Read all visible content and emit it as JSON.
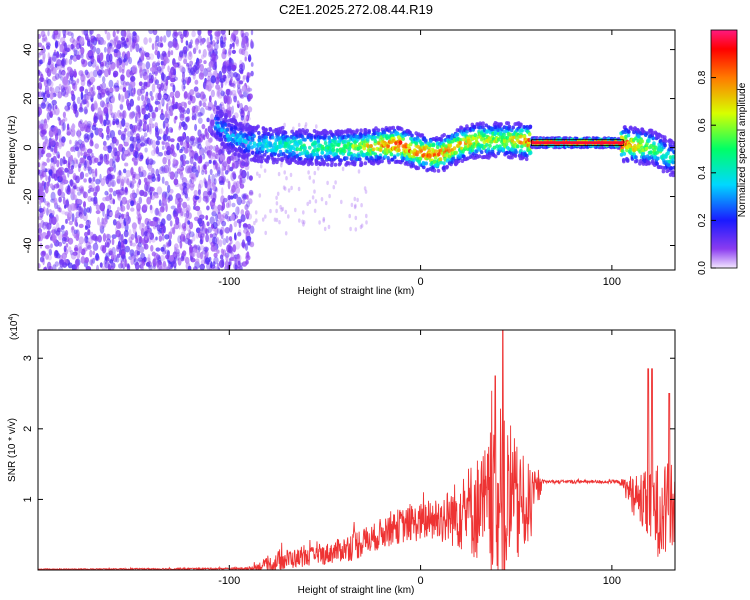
{
  "title": "C2E1.2025.272.08.44.R19",
  "chart_data": [
    {
      "type": "heatmap",
      "xlabel": "Height of straight line (km)",
      "ylabel": "Frequency (Hz)",
      "xlim": [
        -200,
        133
      ],
      "ylim": [
        -50,
        48
      ],
      "xticks": [
        -100,
        0,
        100
      ],
      "xtick_labels": [
        "-100",
        "0",
        "100"
      ],
      "yticks": [
        -40,
        -20,
        0,
        20,
        40
      ],
      "ytick_labels": [
        "-40",
        "-20",
        "0",
        "20",
        "40"
      ],
      "grid": false,
      "colorbar": {
        "label": "Normalized spectral amplitude",
        "range": [
          0,
          1
        ],
        "ticks": [
          0,
          0.2,
          0.4,
          0.6,
          0.8
        ],
        "tick_labels": [
          "0.0",
          "0.2",
          "0.4",
          "0.6",
          "0.8"
        ]
      },
      "ridge": [
        {
          "x": -107,
          "f": 10,
          "amp": 0.3
        },
        {
          "x": -100,
          "f": 5,
          "amp": 0.35
        },
        {
          "x": -90,
          "f": 2,
          "amp": 0.35
        },
        {
          "x": -80,
          "f": 1,
          "amp": 0.4
        },
        {
          "x": -70,
          "f": 1,
          "amp": 0.45
        },
        {
          "x": -60,
          "f": 0,
          "amp": 0.5
        },
        {
          "x": -50,
          "f": 0,
          "amp": 0.5
        },
        {
          "x": -40,
          "f": 0,
          "amp": 0.55
        },
        {
          "x": -30,
          "f": 0,
          "amp": 0.65
        },
        {
          "x": -20,
          "f": 1,
          "amp": 0.8
        },
        {
          "x": -10,
          "f": 1,
          "amp": 0.9
        },
        {
          "x": 0,
          "f": -2,
          "amp": 0.85
        },
        {
          "x": 10,
          "f": -3,
          "amp": 0.8
        },
        {
          "x": 20,
          "f": 1,
          "amp": 0.75
        },
        {
          "x": 30,
          "f": 3,
          "amp": 0.7
        },
        {
          "x": 40,
          "f": 3,
          "amp": 0.65
        },
        {
          "x": 50,
          "f": 3,
          "amp": 0.7
        },
        {
          "x": 60,
          "f": 2,
          "amp": 0.95
        },
        {
          "x": 80,
          "f": 2,
          "amp": 0.95
        },
        {
          "x": 100,
          "f": 2,
          "amp": 0.95
        },
        {
          "x": 110,
          "f": 1,
          "amp": 0.8
        },
        {
          "x": 120,
          "f": 0,
          "amp": 0.6
        },
        {
          "x": 133,
          "f": -5,
          "amp": 0.4
        }
      ],
      "noise_region_x": [
        -200,
        -88
      ]
    },
    {
      "type": "line",
      "xlabel": "Height of straight line (km)",
      "ylabel": "SNR (10 * v/v)",
      "scale_label": "(x10",
      "scale_exponent": "4",
      "xlim": [
        -200,
        133
      ],
      "ylim": [
        0,
        3.4
      ],
      "xticks": [
        -100,
        0,
        100
      ],
      "xtick_labels": [
        "-100",
        "0",
        "100"
      ],
      "yticks": [
        1,
        2,
        3
      ],
      "ytick_labels": [
        "1",
        "2",
        "3"
      ],
      "grid": false,
      "series_color": "#ee3333",
      "envelope": [
        {
          "x": -200,
          "base": 0.01,
          "spread": 0.01
        },
        {
          "x": -90,
          "base": 0.02,
          "spread": 0.03
        },
        {
          "x": -78,
          "base": 0.08,
          "spread": 0.25
        },
        {
          "x": -70,
          "base": 0.15,
          "spread": 0.3
        },
        {
          "x": -60,
          "base": 0.18,
          "spread": 0.25
        },
        {
          "x": -50,
          "base": 0.22,
          "spread": 0.3
        },
        {
          "x": -40,
          "base": 0.3,
          "spread": 0.35
        },
        {
          "x": -35,
          "base": 0.35,
          "spread": 0.45
        },
        {
          "x": -25,
          "base": 0.45,
          "spread": 0.4
        },
        {
          "x": -15,
          "base": 0.6,
          "spread": 0.5
        },
        {
          "x": -5,
          "base": 0.65,
          "spread": 0.5
        },
        {
          "x": 5,
          "base": 0.7,
          "spread": 0.6
        },
        {
          "x": 15,
          "base": 0.75,
          "spread": 0.8
        },
        {
          "x": 25,
          "base": 0.85,
          "spread": 1.3
        },
        {
          "x": 35,
          "base": 0.9,
          "spread": 1.8
        },
        {
          "x": 44,
          "base": 0.9,
          "spread": 2.5
        },
        {
          "x": 52,
          "base": 0.9,
          "spread": 1.6
        },
        {
          "x": 58,
          "base": 0.95,
          "spread": 1.0
        },
        {
          "x": 64,
          "base": 1.25,
          "spread": 0.05
        },
        {
          "x": 104,
          "base": 1.25,
          "spread": 0.05
        },
        {
          "x": 110,
          "base": 1.1,
          "spread": 0.5
        },
        {
          "x": 118,
          "base": 0.9,
          "spread": 1.0
        },
        {
          "x": 125,
          "base": 0.85,
          "spread": 1.4
        },
        {
          "x": 133,
          "base": 0.85,
          "spread": 1.3
        }
      ],
      "peaks": [
        {
          "x": 43,
          "y": 3.4
        },
        {
          "x": 39,
          "y": 2.75
        },
        {
          "x": 119,
          "y": 2.85
        },
        {
          "x": 121,
          "y": 2.85
        },
        {
          "x": 130,
          "y": 2.5
        }
      ]
    }
  ]
}
